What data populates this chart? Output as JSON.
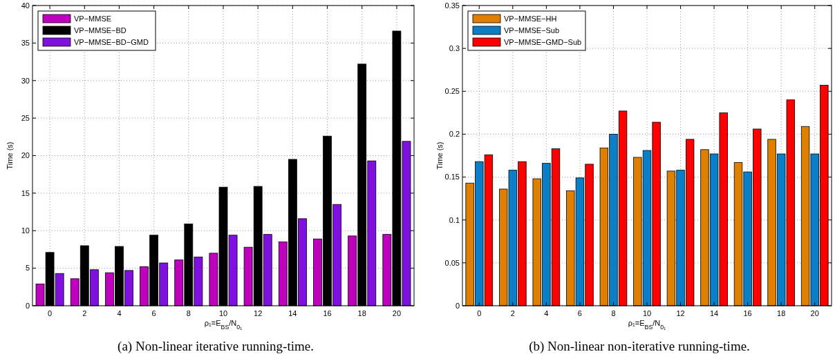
{
  "chart_data": [
    {
      "type": "bar",
      "title": "(a) Non-linear iterative running-time.",
      "xlabel": "ρ₁=E$_{BS}$/N$_{0₁}$",
      "ylabel": "Time (s)",
      "categories": [
        "0",
        "2",
        "4",
        "6",
        "8",
        "10",
        "12",
        "14",
        "16",
        "18",
        "20"
      ],
      "series": [
        {
          "name": "VP−MMSE",
          "color": "#bf00bf",
          "values": [
            2.9,
            3.6,
            4.4,
            5.2,
            6.1,
            7.0,
            7.8,
            8.5,
            8.9,
            9.3,
            9.5
          ]
        },
        {
          "name": "VP−MMSE−BD",
          "color": "#000000",
          "values": [
            7.1,
            8.0,
            7.9,
            9.4,
            10.9,
            15.8,
            15.9,
            19.5,
            22.6,
            32.2,
            36.6
          ]
        },
        {
          "name": "VP−MMSE−BD−GMD",
          "color": "#8010e0",
          "values": [
            4.3,
            4.8,
            4.7,
            5.7,
            6.5,
            9.4,
            9.5,
            11.6,
            13.5,
            19.3,
            21.9
          ]
        }
      ],
      "ylim": [
        0,
        40
      ],
      "yticks": [
        0,
        5,
        10,
        15,
        20,
        25,
        30,
        35,
        40
      ],
      "grid": true,
      "legend": "top left"
    },
    {
      "type": "bar",
      "title": "(b) Non-linear non-iterative running-time.",
      "xlabel": "ρ₁=E$_{BS}$/N$_{0₁}$",
      "ylabel": "Time (s)",
      "categories": [
        "0",
        "2",
        "4",
        "6",
        "8",
        "10",
        "12",
        "14",
        "16",
        "18",
        "20"
      ],
      "series": [
        {
          "name": "VP−MMSE−HH",
          "color": "#df7f00",
          "values": [
            0.143,
            0.136,
            0.148,
            0.134,
            0.184,
            0.173,
            0.157,
            0.182,
            0.167,
            0.194,
            0.209
          ]
        },
        {
          "name": "VP−MMSE−Sub",
          "color": "#0a7fc8",
          "values": [
            0.168,
            0.158,
            0.166,
            0.149,
            0.2,
            0.181,
            0.158,
            0.177,
            0.156,
            0.177,
            0.177
          ]
        },
        {
          "name": "VP−MMSE−GMD−Sub",
          "color": "#ff0000",
          "values": [
            0.176,
            0.168,
            0.183,
            0.165,
            0.227,
            0.214,
            0.194,
            0.225,
            0.206,
            0.24,
            0.257
          ]
        }
      ],
      "ylim": [
        0,
        0.35
      ],
      "yticks": [
        0,
        0.05,
        0.1,
        0.15,
        0.2,
        0.25,
        0.3,
        0.35
      ],
      "grid": true,
      "legend": "top left"
    }
  ]
}
